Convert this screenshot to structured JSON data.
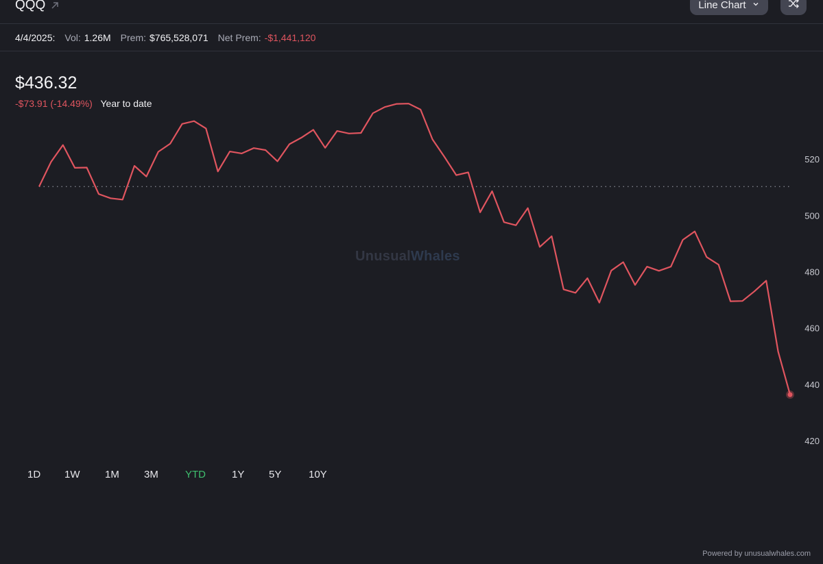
{
  "header": {
    "ticker": "QQQ",
    "chart_type_label": "Line Chart",
    "icons": {
      "external": "external-link-icon",
      "dropdown": "chevron-down-icon",
      "shuffle": "shuffle-icon"
    }
  },
  "stats": {
    "date": "4/4/2025:",
    "vol_label": "Vol:",
    "vol_value": "1.26M",
    "prem_label": "Prem:",
    "prem_value": "$765,528,071",
    "net_prem_label": "Net Prem:",
    "net_prem_value": "-$1,441,120"
  },
  "summary": {
    "price": "$436.32",
    "change": "-$73.91 (-14.49%)",
    "period": "Year to date"
  },
  "watermark": {
    "part1": "Unusual",
    "part2": "Whales"
  },
  "ranges": [
    {
      "label": "1D",
      "active": false
    },
    {
      "label": "1W",
      "active": false
    },
    {
      "label": "1M",
      "active": false
    },
    {
      "label": "3M",
      "active": false
    },
    {
      "label": "YTD",
      "active": true
    },
    {
      "label": "1Y",
      "active": false
    },
    {
      "label": "5Y",
      "active": false
    },
    {
      "label": "10Y",
      "active": false
    }
  ],
  "footer": "Powered by unusualwhales.com",
  "colors": {
    "line": "#e0555f",
    "positive": "#3fbf6e",
    "background": "#1c1d23",
    "axis_text": "#c8c9d0",
    "baseline": "#8a8c96"
  },
  "chart_data": {
    "type": "line",
    "ylim": [
      410,
      540
    ],
    "yticks": [
      420,
      440,
      460,
      480,
      500,
      520
    ],
    "baseline": 510.23,
    "grid": false,
    "legend": "none",
    "series": [
      {
        "values": [
          510.23,
          519.0,
          525.0,
          516.9,
          517.0,
          507.6,
          506.1,
          505.6,
          517.6,
          513.8,
          522.6,
          525.5,
          532.5,
          533.5,
          530.9,
          515.6,
          522.7,
          522.0,
          523.9,
          523.2,
          519.2,
          525.3,
          527.6,
          530.4,
          524.0,
          530.0,
          529.1,
          529.3,
          536.3,
          538.5,
          539.6,
          539.7,
          537.6,
          527.0,
          520.8,
          514.3,
          515.3,
          501.1,
          508.6,
          497.6,
          496.5,
          502.6,
          488.8,
          492.6,
          473.7,
          472.5,
          477.7,
          469.0,
          480.4,
          483.4,
          475.3,
          481.8,
          480.3,
          481.8,
          491.3,
          494.3,
          485.2,
          482.5,
          469.5,
          469.6,
          473.0,
          476.8,
          451.6,
          436.32
        ]
      }
    ]
  }
}
